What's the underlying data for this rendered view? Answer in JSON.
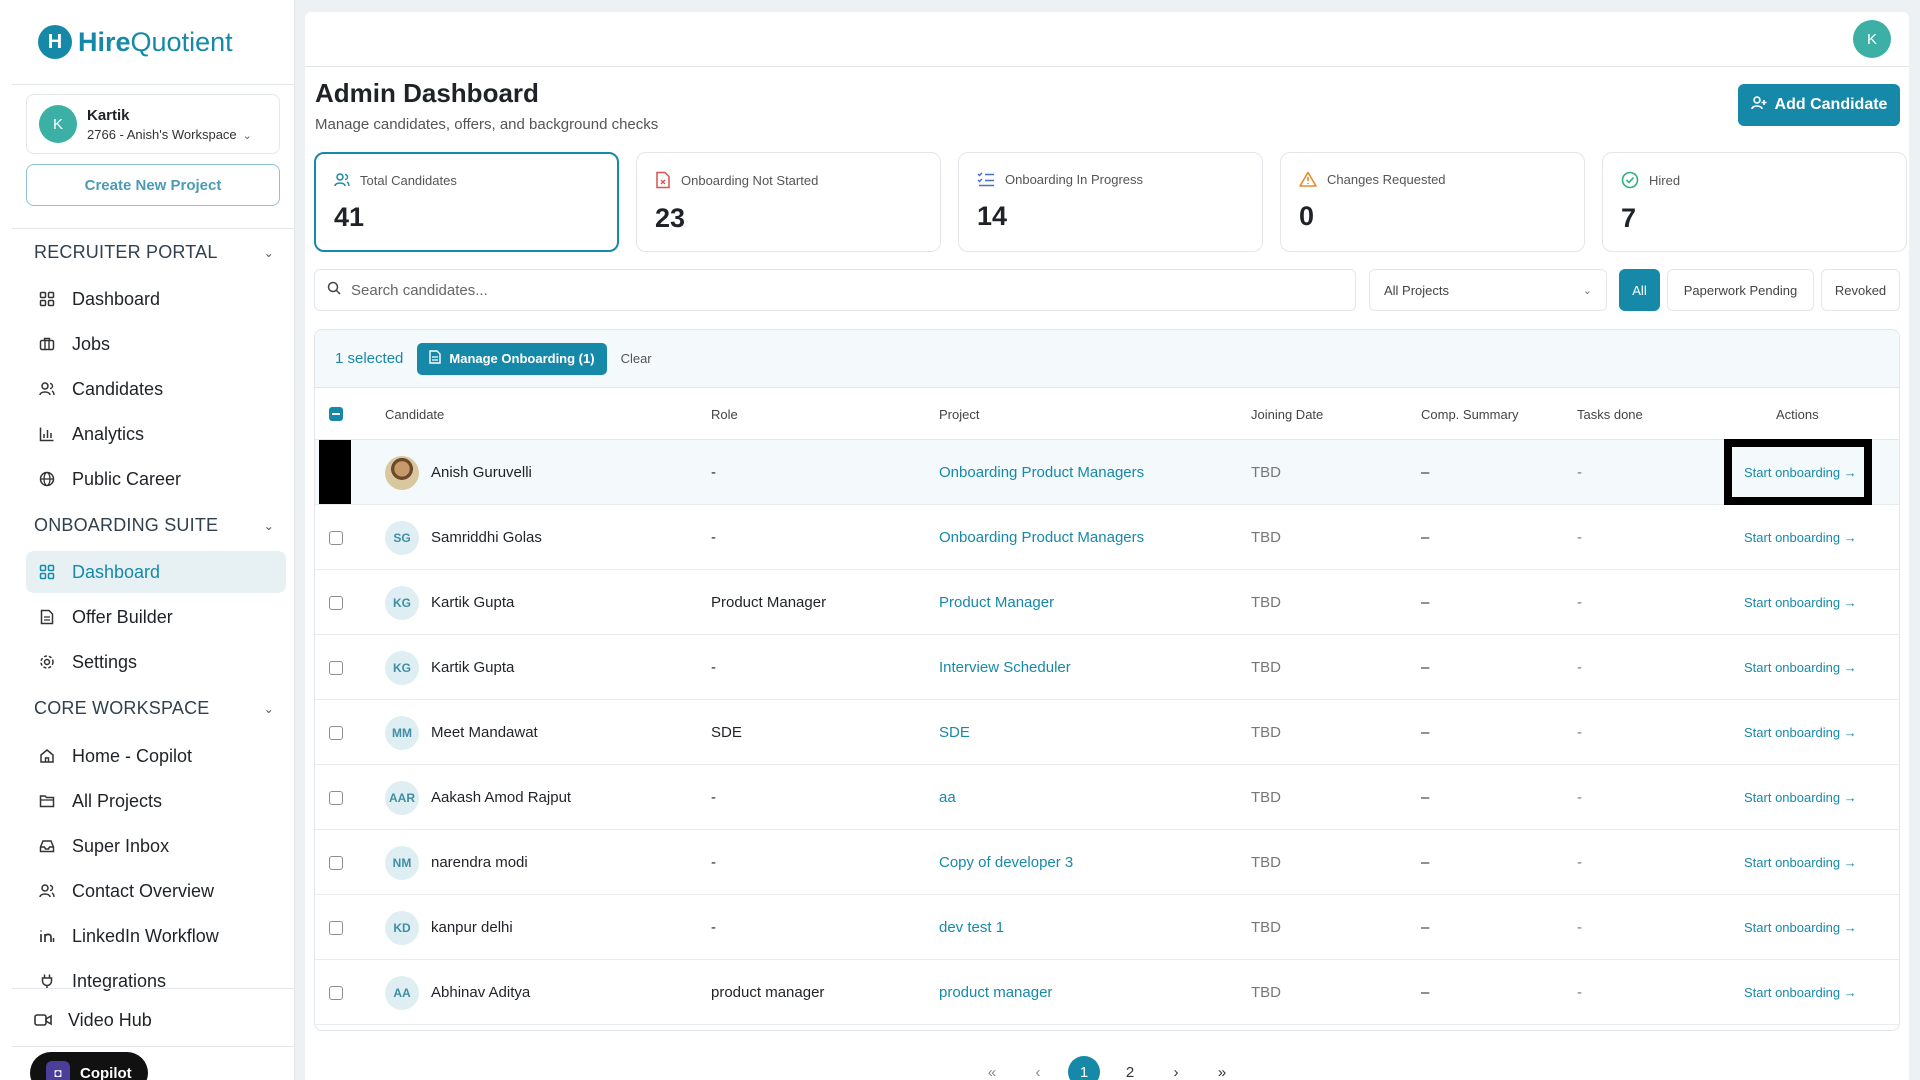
{
  "brand": {
    "logo_mark": "H",
    "name_bold": "Hire",
    "name_light": "Quotient"
  },
  "workspace": {
    "avatar": "K",
    "name": "Kartik",
    "sub": "2766 - Anish's Workspace"
  },
  "create_project_label": "Create New Project",
  "sidebar": {
    "recruiter_portal": {
      "title": "RECRUITER PORTAL",
      "items": [
        {
          "label": "Dashboard",
          "icon": "grid-icon"
        },
        {
          "label": "Jobs",
          "icon": "briefcase-icon"
        },
        {
          "label": "Candidates",
          "icon": "users-icon"
        },
        {
          "label": "Analytics",
          "icon": "bar-chart-icon"
        },
        {
          "label": "Public Career",
          "icon": "globe-icon"
        }
      ]
    },
    "onboarding_suite": {
      "title": "ONBOARDING SUITE",
      "items": [
        {
          "label": "Dashboard",
          "icon": "grid-icon",
          "active": true
        },
        {
          "label": "Offer Builder",
          "icon": "document-icon"
        },
        {
          "label": "Settings",
          "icon": "gear-icon"
        }
      ]
    },
    "core_workspace": {
      "title": "CORE WORKSPACE",
      "items": [
        {
          "label": "Home - Copilot",
          "icon": "home-icon"
        },
        {
          "label": "All Projects",
          "icon": "folder-icon"
        },
        {
          "label": "Super Inbox",
          "icon": "inbox-icon"
        },
        {
          "label": "Contact Overview",
          "icon": "users-icon"
        },
        {
          "label": "LinkedIn Workflow",
          "icon": "linkedin-icon"
        },
        {
          "label": "Integrations",
          "icon": "plug-icon"
        }
      ]
    },
    "video_hub": "Video Hub",
    "copilot": "Copilot"
  },
  "header": {
    "avatar": "K",
    "title": "Admin Dashboard",
    "subtitle": "Manage candidates, offers, and background checks",
    "add_candidate": "Add Candidate"
  },
  "stats": [
    {
      "label": "Total Candidates",
      "value": "41",
      "icon": "users-icon",
      "color": "#1789a8"
    },
    {
      "label": "Onboarding Not Started",
      "value": "23",
      "icon": "file-x-icon",
      "color": "#d9534f"
    },
    {
      "label": "Onboarding In Progress",
      "value": "14",
      "icon": "list-check-icon",
      "color": "#4a6fc9"
    },
    {
      "label": "Changes Requested",
      "value": "0",
      "icon": "warning-icon",
      "color": "#e8892b"
    },
    {
      "label": "Hired",
      "value": "7",
      "icon": "check-circle-icon",
      "color": "#2fb07c"
    }
  ],
  "search": {
    "placeholder": "Search candidates..."
  },
  "project_filter": "All Projects",
  "filters": [
    "All",
    "Paperwork Pending",
    "Revoked"
  ],
  "selection": {
    "count": "1 selected",
    "manage": "Manage Onboarding (1)",
    "clear": "Clear"
  },
  "columns": [
    "Candidate",
    "Role",
    "Project",
    "Joining Date",
    "Comp. Summary",
    "Tasks done",
    "Actions"
  ],
  "rows": [
    {
      "initials": "",
      "name": "Anish Guruvelli",
      "role": "-",
      "project": "Onboarding Product Managers",
      "joining": "TBD",
      "comp": "–",
      "tasks": "-",
      "action": "Start onboarding →",
      "selected": true
    },
    {
      "initials": "SG",
      "name": "Samriddhi Golas",
      "role": "-",
      "project": "Onboarding Product Managers",
      "joining": "TBD",
      "comp": "–",
      "tasks": "-",
      "action": "Start onboarding →"
    },
    {
      "initials": "KG",
      "name": "Kartik Gupta",
      "role": "Product Manager",
      "project": "Product Manager",
      "joining": "TBD",
      "comp": "–",
      "tasks": "-",
      "action": "Start onboarding →"
    },
    {
      "initials": "KG",
      "name": "Kartik Gupta",
      "role": "-",
      "project": "Interview Scheduler",
      "joining": "TBD",
      "comp": "–",
      "tasks": "-",
      "action": "Start onboarding →"
    },
    {
      "initials": "MM",
      "name": "Meet Mandawat",
      "role": "SDE",
      "project": "SDE",
      "joining": "TBD",
      "comp": "–",
      "tasks": "-",
      "action": "Start onboarding →"
    },
    {
      "initials": "AAR",
      "name": "Aakash Amod Rajput",
      "role": "-",
      "project": "aa",
      "joining": "TBD",
      "comp": "–",
      "tasks": "-",
      "action": "Start onboarding →"
    },
    {
      "initials": "NM",
      "name": "narendra modi",
      "role": "-",
      "project": "Copy of developer 3",
      "joining": "TBD",
      "comp": "–",
      "tasks": "-",
      "action": "Start onboarding →"
    },
    {
      "initials": "KD",
      "name": "kanpur delhi",
      "role": "-",
      "project": "dev test 1",
      "joining": "TBD",
      "comp": "–",
      "tasks": "-",
      "action": "Start onboarding →"
    },
    {
      "initials": "AA",
      "name": "Abhinav Aditya",
      "role": "product manager",
      "project": "product manager",
      "joining": "TBD",
      "comp": "–",
      "tasks": "-",
      "action": "Start onboarding →"
    }
  ],
  "pagination": {
    "pages": [
      "1",
      "2"
    ],
    "current": "1"
  }
}
